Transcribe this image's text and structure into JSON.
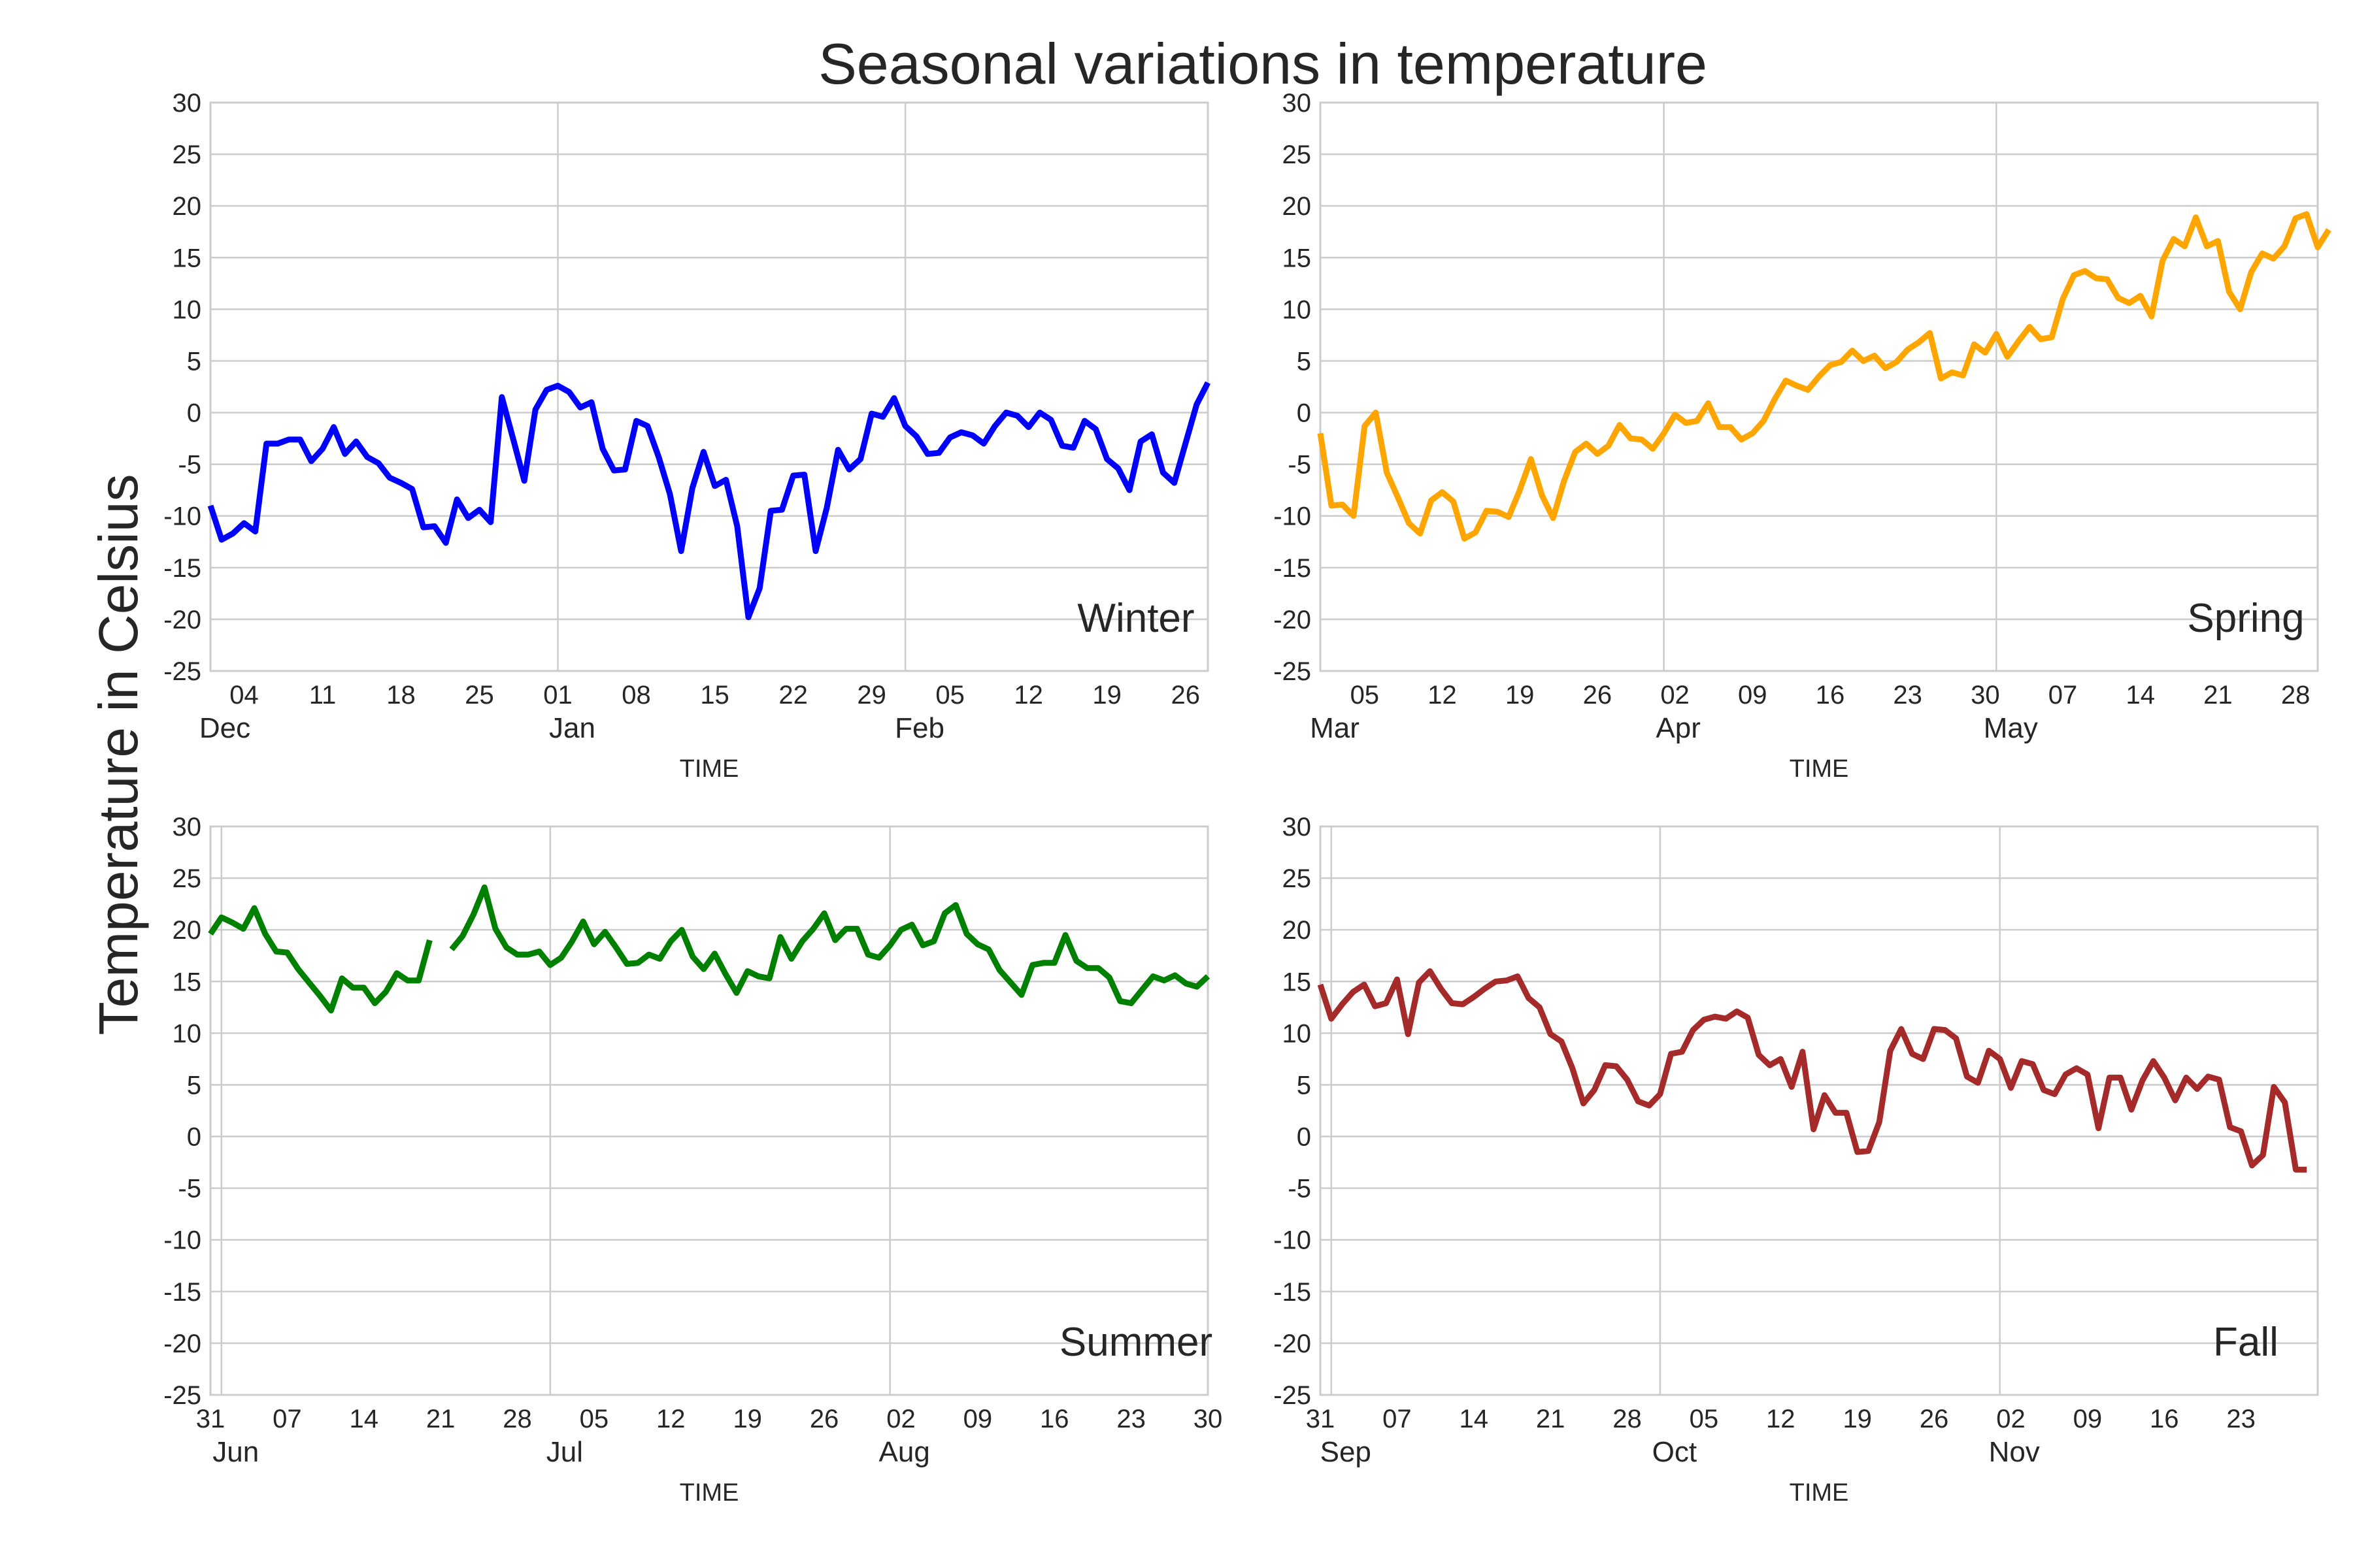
{
  "figure": {
    "title": "Seasonal variations in temperature",
    "ylabel": "Temperature in Celsius"
  },
  "chart_data": [
    {
      "type": "line",
      "label": "Winter",
      "color": "#0000ff",
      "xlabel": "TIME",
      "xlim": [
        "2016-12-01",
        "2017-02-28"
      ],
      "ylim": [
        -25,
        30
      ],
      "yticks": [
        -25,
        -20,
        -15,
        -10,
        -5,
        0,
        5,
        10,
        15,
        20,
        25,
        30
      ],
      "grid": true,
      "minor_ticks": [
        {
          "date": "2016-12-04",
          "label": "04"
        },
        {
          "date": "2016-12-11",
          "label": "11"
        },
        {
          "date": "2016-12-18",
          "label": "18"
        },
        {
          "date": "2016-12-25",
          "label": "25"
        },
        {
          "date": "2017-01-01",
          "label": "01"
        },
        {
          "date": "2017-01-08",
          "label": "08"
        },
        {
          "date": "2017-01-15",
          "label": "15"
        },
        {
          "date": "2017-01-22",
          "label": "22"
        },
        {
          "date": "2017-01-29",
          "label": "29"
        },
        {
          "date": "2017-02-05",
          "label": "05"
        },
        {
          "date": "2017-02-12",
          "label": "12"
        },
        {
          "date": "2017-02-19",
          "label": "19"
        },
        {
          "date": "2017-02-26",
          "label": "26"
        }
      ],
      "major_ticks": [
        {
          "date": "2016-12-01",
          "label": "Dec"
        },
        {
          "date": "2017-01-01",
          "label": "Jan"
        },
        {
          "date": "2017-02-01",
          "label": "Feb"
        }
      ],
      "series": [
        {
          "start": "2016-12-01",
          "values": [
            -9,
            -12.3,
            -11.7,
            -10.7,
            -11.5,
            -3,
            -3,
            -2.6,
            -2.6,
            -4.7,
            -3.5,
            -1.4,
            -4,
            -2.8,
            -4.3,
            -4.9,
            -6.3,
            -6.8,
            -7.4,
            -11.1,
            -11,
            -12.6,
            -8.4,
            -10.2,
            -9.4,
            -10.6,
            1.5,
            -2.5,
            -6.6,
            0.3,
            2.2,
            2.6,
            2,
            0.5,
            1,
            -3.5,
            -5.6,
            -5.5,
            -0.8,
            -1.3,
            -4.3,
            -7.9,
            -13.4,
            -7.3,
            -3.8,
            -7.1,
            -6.5,
            -11,
            -19.8,
            -17,
            -9.5,
            -9.4,
            -6.1,
            -6,
            -13.4,
            -9.2,
            -3.6,
            -5.5,
            -4.5,
            -0.1,
            -0.4,
            1.4,
            -1.3,
            -2.3,
            -4,
            -3.9,
            -2.4,
            -1.9,
            -2.2,
            -3,
            -1.3,
            0,
            -0.3,
            -1.4,
            0,
            -0.7,
            -3.2,
            -3.4,
            -0.8,
            -1.6,
            -4.5,
            -5.4,
            -7.5,
            -2.8,
            -2.1,
            -5.8,
            -6.8,
            -3,
            0.8,
            2.9
          ]
        }
      ]
    },
    {
      "type": "line",
      "label": "Spring",
      "color": "#ffa500",
      "xlabel": "TIME",
      "xlim": [
        "2017-03-01",
        "2017-05-30"
      ],
      "ylim": [
        -25,
        30
      ],
      "yticks": [
        -25,
        -20,
        -15,
        -10,
        -5,
        0,
        5,
        10,
        15,
        20,
        25,
        30
      ],
      "grid": true,
      "minor_ticks": [
        {
          "date": "2017-03-05",
          "label": "05"
        },
        {
          "date": "2017-03-12",
          "label": "12"
        },
        {
          "date": "2017-03-19",
          "label": "19"
        },
        {
          "date": "2017-03-26",
          "label": "26"
        },
        {
          "date": "2017-04-02",
          "label": "02"
        },
        {
          "date": "2017-04-09",
          "label": "09"
        },
        {
          "date": "2017-04-16",
          "label": "16"
        },
        {
          "date": "2017-04-23",
          "label": "23"
        },
        {
          "date": "2017-04-30",
          "label": "30"
        },
        {
          "date": "2017-05-07",
          "label": "07"
        },
        {
          "date": "2017-05-14",
          "label": "14"
        },
        {
          "date": "2017-05-21",
          "label": "21"
        },
        {
          "date": "2017-05-28",
          "label": "28"
        }
      ],
      "major_ticks": [
        {
          "date": "2017-03-01",
          "label": "Mar"
        },
        {
          "date": "2017-04-01",
          "label": "Apr"
        },
        {
          "date": "2017-05-01",
          "label": "May"
        }
      ],
      "series": [
        {
          "start": "2017-03-01",
          "values": [
            -2,
            -9,
            -8.9,
            -10,
            -1.3,
            0,
            -5.8,
            -8.2,
            -10.7,
            -11.7,
            -8.5,
            -7.7,
            -8.6,
            -12.2,
            -11.6,
            -9.5,
            -9.6,
            -10.1,
            -7.5,
            -4.5,
            -8,
            -10.2,
            -6.6,
            -3.8,
            -3,
            -4,
            -3.2,
            -1.2,
            -2.5,
            -2.6,
            -3.5,
            -2,
            -0.2,
            -1,
            -0.8,
            0.9,
            -1.4,
            -1.4,
            -2.6,
            -2,
            -0.8,
            1.3,
            3.1,
            2.6,
            2.2,
            3.5,
            4.6,
            4.9,
            6,
            5,
            5.5,
            4.3,
            4.9,
            6.1,
            6.8,
            7.7,
            3.3,
            3.9,
            3.6,
            6.6,
            5.8,
            7.6,
            5.4,
            6.9,
            8.3,
            7.1,
            7.3,
            11,
            13.3,
            13.7,
            13,
            12.9,
            11.1,
            10.6,
            11.3,
            9.3,
            14.7,
            16.8,
            16.1,
            18.9,
            16.1,
            16.6,
            11.7,
            10,
            13.6,
            15.4,
            14.9,
            16.1,
            18.8,
            19.2,
            16,
            17.7
          ]
        }
      ]
    },
    {
      "type": "line",
      "label": "Summer",
      "color": "#008000",
      "xlabel": "TIME",
      "xlim": [
        "2017-05-31",
        "2017-08-30"
      ],
      "ylim": [
        -25,
        30
      ],
      "yticks": [
        -25,
        -20,
        -15,
        -10,
        -5,
        0,
        5,
        10,
        15,
        20,
        25,
        30
      ],
      "grid": true,
      "minor_ticks": [
        {
          "date": "2017-05-31",
          "label": "31"
        },
        {
          "date": "2017-06-07",
          "label": "07"
        },
        {
          "date": "2017-06-14",
          "label": "14"
        },
        {
          "date": "2017-06-21",
          "label": "21"
        },
        {
          "date": "2017-06-28",
          "label": "28"
        },
        {
          "date": "2017-07-05",
          "label": "05"
        },
        {
          "date": "2017-07-12",
          "label": "12"
        },
        {
          "date": "2017-07-19",
          "label": "19"
        },
        {
          "date": "2017-07-26",
          "label": "26"
        },
        {
          "date": "2017-08-02",
          "label": "02"
        },
        {
          "date": "2017-08-09",
          "label": "09"
        },
        {
          "date": "2017-08-16",
          "label": "16"
        },
        {
          "date": "2017-08-23",
          "label": "23"
        },
        {
          "date": "2017-08-30",
          "label": "30"
        }
      ],
      "major_ticks": [
        {
          "date": "2017-06-01",
          "label": "Jun"
        },
        {
          "date": "2017-07-01",
          "label": "Jul"
        },
        {
          "date": "2017-08-01",
          "label": "Aug"
        }
      ],
      "series": [
        {
          "start": "2017-05-31",
          "values": [
            19.6,
            21.2,
            20.7,
            20.1,
            22.1,
            19.6,
            17.9,
            17.8,
            16.2,
            14.9,
            13.6,
            12.2,
            15.3,
            14.4,
            14.4,
            12.9,
            14,
            15.8,
            15.1,
            15.1,
            19
          ]
        },
        {
          "start": "2017-06-22",
          "values": [
            18.1,
            19.4,
            21.5,
            24.1,
            20.1,
            18.3,
            17.6,
            17.6,
            17.9,
            16.6,
            17.3,
            18.9,
            20.8,
            18.6,
            19.8,
            18.3,
            16.7,
            16.8,
            17.6,
            17.2,
            18.9,
            20,
            17.4,
            16.2,
            17.7,
            15.7,
            13.9,
            16,
            15.5,
            15.3,
            19.3,
            17.2,
            18.9,
            20.1,
            21.6,
            19,
            20.1,
            20.1,
            17.6,
            17.3,
            18.5,
            20,
            20.5,
            18.5,
            18.9,
            21.6,
            22.4,
            19.6,
            18.6,
            18.1,
            16.1,
            14.9,
            13.7,
            16.6,
            16.8,
            16.8,
            19.5,
            17,
            16.3,
            16.3,
            15.4,
            13.1,
            12.9,
            14.2,
            15.5,
            15.1,
            15.6,
            14.8,
            14.5,
            15.5
          ]
        }
      ]
    },
    {
      "type": "line",
      "label": "Fall",
      "color": "#a52a2a",
      "xlabel": "TIME",
      "xlim": [
        "2017-08-31",
        "2017-11-30"
      ],
      "ylim": [
        -25,
        30
      ],
      "yticks": [
        -25,
        -20,
        -15,
        -10,
        -5,
        0,
        5,
        10,
        15,
        20,
        25,
        30
      ],
      "grid": true,
      "minor_ticks": [
        {
          "date": "2017-08-31",
          "label": "31"
        },
        {
          "date": "2017-09-07",
          "label": "07"
        },
        {
          "date": "2017-09-14",
          "label": "14"
        },
        {
          "date": "2017-09-21",
          "label": "21"
        },
        {
          "date": "2017-09-28",
          "label": "28"
        },
        {
          "date": "2017-10-05",
          "label": "05"
        },
        {
          "date": "2017-10-12",
          "label": "12"
        },
        {
          "date": "2017-10-19",
          "label": "19"
        },
        {
          "date": "2017-10-26",
          "label": "26"
        },
        {
          "date": "2017-11-02",
          "label": "02"
        },
        {
          "date": "2017-11-09",
          "label": "09"
        },
        {
          "date": "2017-11-16",
          "label": "16"
        },
        {
          "date": "2017-11-23",
          "label": "23"
        }
      ],
      "major_ticks": [
        {
          "date": "2017-09-01",
          "label": "Sep"
        },
        {
          "date": "2017-10-01",
          "label": "Oct"
        },
        {
          "date": "2017-11-01",
          "label": "Nov"
        }
      ],
      "series": [
        {
          "start": "2017-08-31",
          "values": [
            14.7,
            11.4,
            12.8,
            14,
            14.7,
            12.6,
            12.9,
            15.2,
            9.9,
            14.9,
            16,
            14.3,
            12.9,
            12.8,
            13.5,
            14.3,
            15,
            15.1,
            15.5,
            13.4,
            12.5,
            9.9,
            9.2,
            6.6,
            3.2,
            4.5,
            6.9,
            6.8,
            5.5,
            3.4,
            3,
            4.1,
            8,
            8.2,
            10.3,
            11.3,
            11.6,
            11.4,
            12.1,
            11.5,
            7.9,
            6.9,
            7.5,
            4.8,
            8.2,
            0.7,
            4,
            2.3,
            2.3,
            -1.5,
            -1.4,
            1.4,
            8.3,
            10.4,
            8,
            7.5,
            10.4,
            10.3,
            9.5,
            5.8,
            5.2,
            8.3,
            7.5,
            4.7,
            7.3,
            7,
            4.5,
            4.1,
            6,
            6.6,
            6,
            0.8,
            5.7,
            5.7,
            2.6,
            5.4,
            7.3,
            5.7,
            3.5,
            5.7,
            4.6,
            5.8,
            5.5,
            0.9,
            0.5,
            -2.8,
            -1.8,
            4.8,
            3.3,
            -3.2,
            -3.2
          ]
        }
      ]
    }
  ]
}
